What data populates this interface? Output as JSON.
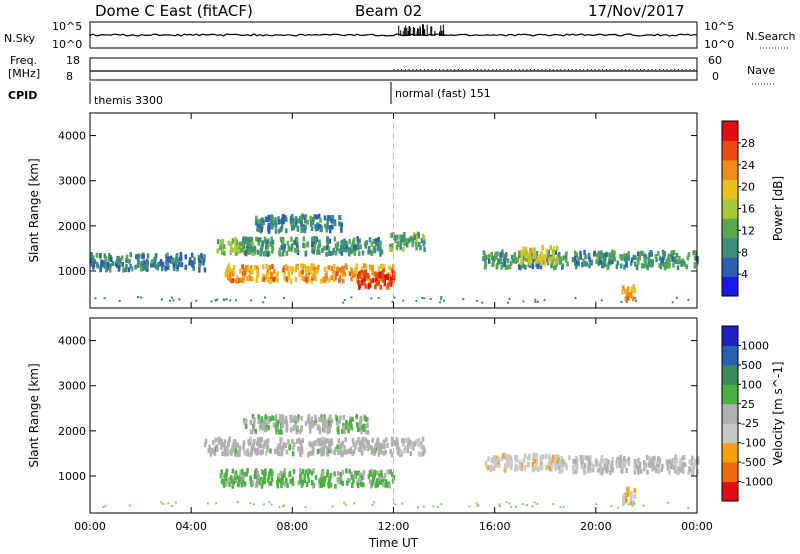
{
  "header": {
    "title": "Dome C East (fitACF)",
    "beam": "Beam 02",
    "date": "17/Nov/2017"
  },
  "summary": {
    "nsky_label": "N.Sky",
    "nsky_top": "10^5",
    "nsky_bottom": "10^0",
    "nsearch_label": "N.Search",
    "nsearch_top": "10^5",
    "nsearch_bottom": "10^0",
    "freq_label_1": "Freq.",
    "freq_label_2": "[MHz]",
    "freq_top": "18",
    "freq_bottom": "8",
    "nave_label": "Nave",
    "nave_top": "60",
    "nave_bottom": "0",
    "cpid_label": "CPID",
    "cpid_1": "themis 3300",
    "cpid_2": "normal (fast) 151"
  },
  "colors": {
    "power": [
      "#1a1ae6",
      "#2c5fb0",
      "#3b8f7a",
      "#5aa84e",
      "#a8c83a",
      "#e8c020",
      "#f08a18",
      "#e84a10",
      "#e01010"
    ],
    "velocity": [
      "#e01010",
      "#f06a10",
      "#f5a010",
      "#c8c8c8",
      "#b0b0b0",
      "#4ab040",
      "#3a8a5a",
      "#2a60b0",
      "#2020c0"
    ]
  },
  "chart_data": [
    {
      "type": "heatmap",
      "title": "",
      "ylabel": "Slant Range [km]",
      "xlabel": "",
      "x_ticks": [
        "00:00",
        "04:00",
        "08:00",
        "12:00",
        "16:00",
        "20:00",
        "00:00"
      ],
      "y_ticks": [
        "1000",
        "2000",
        "3000",
        "4000"
      ],
      "ylim": [
        180,
        4500
      ],
      "colorbar": {
        "label": "Power [dB]",
        "ticks": [
          "4",
          "8",
          "12",
          "16",
          "20",
          "24",
          "28"
        ],
        "range": [
          0,
          32
        ]
      },
      "echo_regions": [
        {
          "t0": 0.0,
          "t1": 4.5,
          "r": 1250,
          "value": 8
        },
        {
          "t0": 5.0,
          "t1": 6.5,
          "r": 1600,
          "value": 14
        },
        {
          "t0": 5.3,
          "t1": 12.0,
          "r": 1000,
          "value": 22
        },
        {
          "t0": 6.0,
          "t1": 11.5,
          "r": 1600,
          "value": 10
        },
        {
          "t0": 6.5,
          "t1": 10.0,
          "r": 2100,
          "value": 8
        },
        {
          "t0": 10.5,
          "t1": 12.0,
          "r": 850,
          "value": 28
        },
        {
          "t0": 11.8,
          "t1": 13.2,
          "r": 1700,
          "value": 12
        },
        {
          "t0": 15.5,
          "t1": 24.0,
          "r": 1300,
          "value": 10
        },
        {
          "t0": 17.0,
          "t1": 18.5,
          "r": 1400,
          "value": 18
        },
        {
          "t0": 21.0,
          "t1": 21.5,
          "r": 600,
          "value": 22
        }
      ]
    },
    {
      "type": "heatmap",
      "title": "",
      "ylabel": "Slant Range [km]",
      "xlabel": "Time UT",
      "x_ticks": [
        "00:00",
        "04:00",
        "08:00",
        "12:00",
        "16:00",
        "20:00",
        "00:00"
      ],
      "y_ticks": [
        "1000",
        "2000",
        "3000",
        "4000"
      ],
      "ylim": [
        180,
        4500
      ],
      "colorbar": {
        "label": "Velocity [m s^-1]",
        "ticks": [
          "-1000",
          "-500",
          "-100",
          "-25",
          "25",
          "100",
          "500",
          "1000"
        ],
        "range": [
          -1200,
          1200
        ]
      },
      "echo_regions": [
        {
          "t0": 5.0,
          "t1": 12.0,
          "r": 1000,
          "value": -200
        },
        {
          "t0": 4.5,
          "t1": 12.0,
          "r": 1700,
          "value": 0
        },
        {
          "t0": 6.0,
          "t1": 11.0,
          "r": 2200,
          "value": -100
        },
        {
          "t0": 12.0,
          "t1": 13.2,
          "r": 1700,
          "value": 150
        },
        {
          "t0": 15.5,
          "t1": 18.5,
          "r": 1350,
          "value": 300
        },
        {
          "t0": 18.5,
          "t1": 24.0,
          "r": 1300,
          "value": 120
        },
        {
          "t0": 21.0,
          "t1": 21.5,
          "r": 600,
          "value": 400
        }
      ]
    }
  ]
}
